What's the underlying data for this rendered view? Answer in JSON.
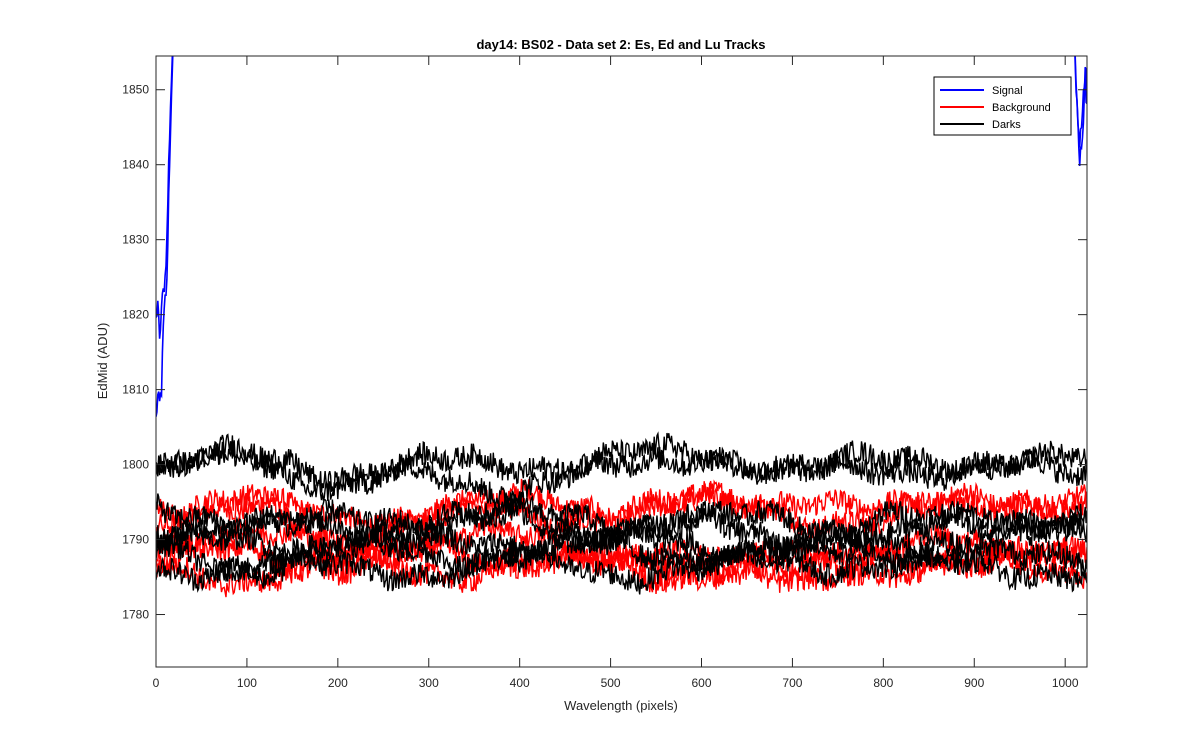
{
  "chart_data": {
    "type": "line",
    "title": "day14: BS02 - Data set 2: Es, Ed and Lu Tracks",
    "xlabel": "Wavelength (pixels)",
    "ylabel": "EdMid (ADU)",
    "xlim": [
      0,
      1024
    ],
    "ylim": [
      1773,
      1854.5
    ],
    "x_ticks": [
      0,
      100,
      200,
      300,
      400,
      500,
      600,
      700,
      800,
      900,
      1000
    ],
    "y_ticks": [
      1780,
      1790,
      1800,
      1810,
      1820,
      1830,
      1840,
      1850
    ],
    "grid": false,
    "legend_location": "top-right",
    "legend": [
      {
        "name": "Signal",
        "color": "#0000ff"
      },
      {
        "name": "Background",
        "color": "#ff0000"
      },
      {
        "name": "Darks",
        "color": "#000000"
      }
    ],
    "series": [
      {
        "name": "Signal",
        "color": "#0000ff",
        "x": [
          0,
          2,
          4,
          6,
          8,
          10,
          12,
          14,
          16,
          18,
          20,
          22,
          1010,
          1012,
          1014,
          1016,
          1018,
          1020,
          1022,
          1024
        ],
        "y": [
          1806,
          1809,
          1808,
          1810,
          1818,
          1822,
          1824,
          1836,
          1845,
          1852,
          1860,
          1870,
          1858,
          1850,
          1845,
          1840,
          1843,
          1846,
          1853,
          1850
        ]
      },
      {
        "name": "Signal",
        "color": "#0000ff",
        "x": [
          0,
          2,
          4,
          6,
          8,
          10,
          12,
          14,
          16,
          18,
          20,
          22,
          1010,
          1012,
          1014,
          1016,
          1018,
          1020,
          1022,
          1024
        ],
        "y": [
          1819,
          1822,
          1816,
          1821,
          1823,
          1825,
          1830,
          1840,
          1848,
          1855,
          1862,
          1872,
          1856,
          1852,
          1846,
          1843,
          1845,
          1849,
          1851,
          1848
        ]
      },
      {
        "name": "Background",
        "color": "#ff0000",
        "x": [
          0,
          100,
          200,
          300,
          400,
          500,
          600,
          700,
          800,
          900,
          1024
        ],
        "y": [
          1794,
          1795,
          1792,
          1794,
          1795,
          1794,
          1795,
          1793,
          1793,
          1795,
          1795
        ]
      },
      {
        "name": "Background",
        "color": "#ff0000",
        "x": [
          0,
          100,
          200,
          300,
          400,
          500,
          600,
          700,
          800,
          900,
          1024
        ],
        "y": [
          1793,
          1795,
          1790,
          1793,
          1794,
          1793,
          1795,
          1796,
          1793,
          1796,
          1794
        ]
      },
      {
        "name": "Background",
        "color": "#ff0000",
        "x": [
          0,
          100,
          200,
          300,
          400,
          500,
          600,
          700,
          800,
          900,
          1024
        ],
        "y": [
          1787,
          1789,
          1786,
          1788,
          1788,
          1786,
          1787,
          1786,
          1788,
          1787,
          1788
        ]
      },
      {
        "name": "Background",
        "color": "#ff0000",
        "x": [
          0,
          100,
          200,
          300,
          400,
          500,
          600,
          700,
          800,
          900,
          1024
        ],
        "y": [
          1786,
          1785,
          1787,
          1786,
          1786,
          1787,
          1785,
          1788,
          1786,
          1787,
          1786
        ]
      },
      {
        "name": "Background",
        "color": "#ff0000",
        "x": [
          0,
          100,
          200,
          300,
          400,
          500,
          600,
          700,
          800,
          900,
          1024
        ],
        "y": [
          1790,
          1791,
          1788,
          1790,
          1790,
          1789,
          1787,
          1785,
          1788,
          1790,
          1788
        ]
      },
      {
        "name": "Darks",
        "color": "#000000",
        "x": [
          0,
          100,
          200,
          300,
          400,
          500,
          600,
          700,
          800,
          900,
          1024
        ],
        "y": [
          1800,
          1801,
          1799,
          1800,
          1800,
          1801,
          1801,
          1800,
          1800,
          1801,
          1800
        ]
      },
      {
        "name": "Darks",
        "color": "#000000",
        "x": [
          0,
          100,
          200,
          300,
          400,
          500,
          600,
          700,
          800,
          900,
          1024
        ],
        "y": [
          1798,
          1802,
          1796,
          1799,
          1797,
          1799,
          1802,
          1798,
          1800,
          1799,
          1799
        ]
      },
      {
        "name": "Darks",
        "color": "#000000",
        "x": [
          0,
          100,
          200,
          300,
          400,
          500,
          600,
          700,
          800,
          900,
          1024
        ],
        "y": [
          1794,
          1793,
          1792,
          1793,
          1793,
          1792,
          1793,
          1792,
          1791,
          1792,
          1793
        ]
      },
      {
        "name": "Darks",
        "color": "#000000",
        "x": [
          0,
          100,
          200,
          300,
          400,
          500,
          600,
          700,
          800,
          900,
          1024
        ],
        "y": [
          1792,
          1791,
          1792,
          1792,
          1793,
          1791,
          1792,
          1790,
          1792,
          1793,
          1792
        ]
      },
      {
        "name": "Darks",
        "color": "#000000",
        "x": [
          0,
          100,
          200,
          300,
          400,
          500,
          600,
          700,
          800,
          900,
          1024
        ],
        "y": [
          1790,
          1789,
          1790,
          1789,
          1790,
          1790,
          1789,
          1790,
          1789,
          1791,
          1790
        ]
      },
      {
        "name": "Darks",
        "color": "#000000",
        "x": [
          0,
          100,
          200,
          300,
          400,
          500,
          600,
          700,
          800,
          900,
          1024
        ],
        "y": [
          1788,
          1786,
          1789,
          1788,
          1788,
          1789,
          1788,
          1788,
          1789,
          1787,
          1788
        ]
      },
      {
        "name": "Darks",
        "color": "#000000",
        "x": [
          0,
          100,
          200,
          300,
          400,
          500,
          600,
          700,
          800,
          900,
          1024
        ],
        "y": [
          1786,
          1787,
          1786,
          1786,
          1787,
          1786,
          1786,
          1787,
          1787,
          1786,
          1786
        ]
      }
    ]
  }
}
